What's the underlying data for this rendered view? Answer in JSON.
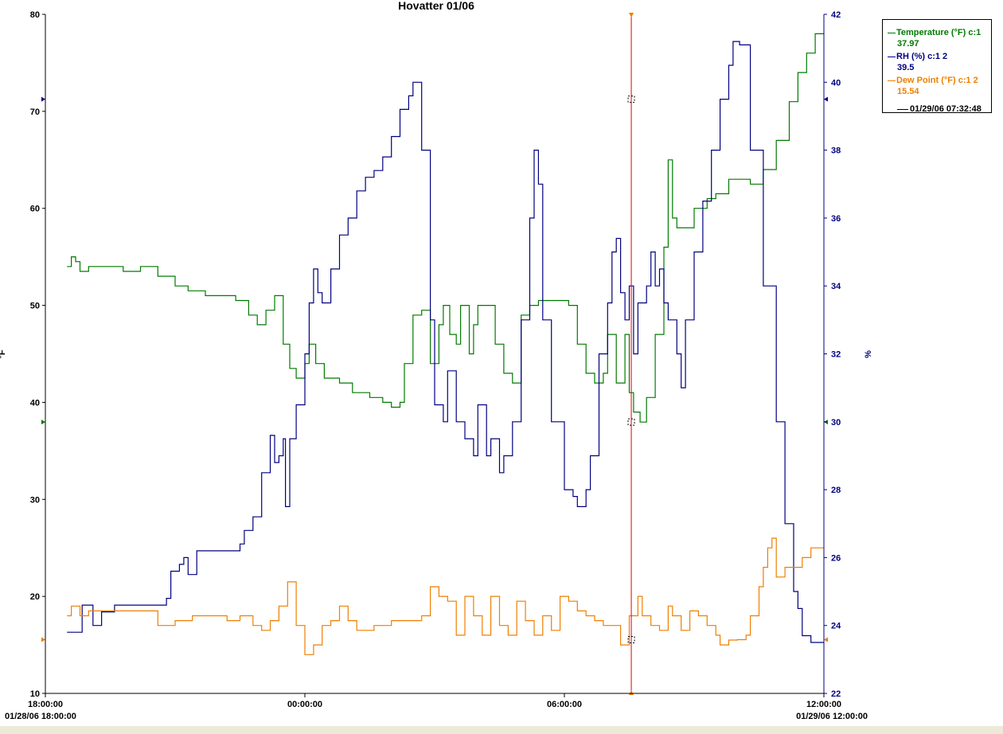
{
  "colors": {
    "temperature": "#007a00",
    "rh": "#000080",
    "dewpoint": "#ee7f00",
    "cursor": "#e00000",
    "axis_left": "#000000",
    "axis_right": "#000080"
  },
  "legend": {
    "temperature": {
      "label": "Temperature (°F) c:1",
      "value": "37.97"
    },
    "rh": {
      "label": "RH (%) c:1 2",
      "value": "39.5"
    },
    "dewpoint": {
      "label": "Dew Point (°F) c:1 2",
      "value": "15.54"
    },
    "cursor_time": "01/29/06 07:32:48"
  },
  "chart_data": {
    "type": "line",
    "title": "Hovatter 01/06",
    "ylabel_left": "°F",
    "ylabel_right": "%",
    "xlim": [
      "01/28/06 18:00:00",
      "01/29/06 12:00:00"
    ],
    "ylim_left": [
      10,
      80
    ],
    "ylim_right": [
      22,
      42
    ],
    "y_ticks_left": [
      "10",
      "20",
      "30",
      "40",
      "50",
      "60",
      "70",
      "80"
    ],
    "y_ticks_right": [
      "22",
      "24",
      "26",
      "28",
      "30",
      "32",
      "34",
      "36",
      "38",
      "40",
      "42"
    ],
    "x_ticks": [
      {
        "hour": 0,
        "label": "18:00:00",
        "sub": "01/28/06 18:00:00"
      },
      {
        "hour": 6,
        "label": "00:00:00",
        "sub": ""
      },
      {
        "hour": 12,
        "label": "06:00:00",
        "sub": ""
      },
      {
        "hour": 18,
        "label": "12:00:00",
        "sub": "01/29/06 12:00:00"
      }
    ],
    "cursor_hour": 13.547,
    "grid": false,
    "legend_position": "top-right",
    "series": [
      {
        "name": "Temperature (°F) c:1",
        "axis": "left",
        "color": "#007a00",
        "points": [
          [
            0.5,
            54
          ],
          [
            0.6,
            55
          ],
          [
            0.7,
            54.5
          ],
          [
            0.8,
            53.5
          ],
          [
            1.0,
            54
          ],
          [
            1.4,
            54
          ],
          [
            1.8,
            53.5
          ],
          [
            2.2,
            54
          ],
          [
            2.6,
            53
          ],
          [
            3.0,
            52
          ],
          [
            3.3,
            51.5
          ],
          [
            3.7,
            51
          ],
          [
            4.1,
            51
          ],
          [
            4.4,
            50.5
          ],
          [
            4.7,
            49
          ],
          [
            4.9,
            48
          ],
          [
            5.1,
            49.5
          ],
          [
            5.3,
            51
          ],
          [
            5.5,
            46
          ],
          [
            5.65,
            43.5
          ],
          [
            5.8,
            42.5
          ],
          [
            6.0,
            44
          ],
          [
            6.1,
            46
          ],
          [
            6.25,
            44
          ],
          [
            6.45,
            42.5
          ],
          [
            6.8,
            42
          ],
          [
            7.1,
            41
          ],
          [
            7.5,
            40.5
          ],
          [
            7.8,
            40
          ],
          [
            8.0,
            39.5
          ],
          [
            8.2,
            40
          ],
          [
            8.3,
            44
          ],
          [
            8.5,
            49
          ],
          [
            8.7,
            49.5
          ],
          [
            8.9,
            44
          ],
          [
            9.0,
            44
          ],
          [
            9.1,
            48
          ],
          [
            9.2,
            50
          ],
          [
            9.35,
            47
          ],
          [
            9.5,
            46
          ],
          [
            9.6,
            50
          ],
          [
            9.7,
            50
          ],
          [
            9.8,
            45
          ],
          [
            9.9,
            48
          ],
          [
            10.0,
            50
          ],
          [
            10.2,
            50
          ],
          [
            10.4,
            46
          ],
          [
            10.6,
            43
          ],
          [
            10.8,
            42
          ],
          [
            11.0,
            49
          ],
          [
            11.2,
            50
          ],
          [
            11.4,
            50.5
          ],
          [
            11.9,
            50.5
          ],
          [
            12.1,
            50
          ],
          [
            12.3,
            46
          ],
          [
            12.5,
            43
          ],
          [
            12.7,
            42
          ],
          [
            12.9,
            43
          ],
          [
            13.0,
            47
          ],
          [
            13.2,
            42
          ],
          [
            13.4,
            47
          ],
          [
            13.5,
            41
          ],
          [
            13.6,
            39
          ],
          [
            13.75,
            37.97
          ],
          [
            13.9,
            40.5
          ],
          [
            14.1,
            47
          ],
          [
            14.3,
            56
          ],
          [
            14.4,
            65
          ],
          [
            14.5,
            59
          ],
          [
            14.6,
            58
          ],
          [
            14.8,
            58
          ],
          [
            15.0,
            60
          ],
          [
            15.3,
            61
          ],
          [
            15.5,
            61.5
          ],
          [
            15.8,
            63
          ],
          [
            16.1,
            63
          ],
          [
            16.3,
            62.5
          ],
          [
            16.6,
            64
          ],
          [
            16.9,
            67
          ],
          [
            17.2,
            71
          ],
          [
            17.4,
            74
          ],
          [
            17.6,
            76
          ],
          [
            17.8,
            78
          ],
          [
            18.0,
            78
          ]
        ]
      },
      {
        "name": "RH (%) c:1 2",
        "axis": "right",
        "color": "#000080",
        "points": [
          [
            0.5,
            23.8
          ],
          [
            0.8,
            23.8
          ],
          [
            0.85,
            24.6
          ],
          [
            1.0,
            24.6
          ],
          [
            1.1,
            24.0
          ],
          [
            1.2,
            24.0
          ],
          [
            1.3,
            24.4
          ],
          [
            1.6,
            24.6
          ],
          [
            2.0,
            24.6
          ],
          [
            2.5,
            24.6
          ],
          [
            2.8,
            24.8
          ],
          [
            2.9,
            25.6
          ],
          [
            3.1,
            25.8
          ],
          [
            3.2,
            26.0
          ],
          [
            3.3,
            25.5
          ],
          [
            3.5,
            26.2
          ],
          [
            3.9,
            26.2
          ],
          [
            4.2,
            26.2
          ],
          [
            4.5,
            26.4
          ],
          [
            4.6,
            26.8
          ],
          [
            4.8,
            27.2
          ],
          [
            5.0,
            28.5
          ],
          [
            5.2,
            29.6
          ],
          [
            5.3,
            28.8
          ],
          [
            5.4,
            29.0
          ],
          [
            5.5,
            29.5
          ],
          [
            5.55,
            27.5
          ],
          [
            5.65,
            29.5
          ],
          [
            5.8,
            30.5
          ],
          [
            6.0,
            32
          ],
          [
            6.1,
            33.5
          ],
          [
            6.2,
            34.5
          ],
          [
            6.3,
            33.8
          ],
          [
            6.4,
            33.5
          ],
          [
            6.6,
            34.5
          ],
          [
            6.8,
            35.5
          ],
          [
            7.0,
            36
          ],
          [
            7.2,
            36.8
          ],
          [
            7.4,
            37.2
          ],
          [
            7.6,
            37.4
          ],
          [
            7.8,
            37.8
          ],
          [
            8.0,
            38.4
          ],
          [
            8.2,
            39.2
          ],
          [
            8.4,
            39.6
          ],
          [
            8.5,
            40.0
          ],
          [
            8.7,
            38
          ],
          [
            8.9,
            33
          ],
          [
            9.0,
            30.5
          ],
          [
            9.2,
            30
          ],
          [
            9.3,
            31.5
          ],
          [
            9.5,
            30
          ],
          [
            9.7,
            29.5
          ],
          [
            9.9,
            29
          ],
          [
            10.0,
            30.5
          ],
          [
            10.2,
            29.0
          ],
          [
            10.3,
            29.5
          ],
          [
            10.5,
            28.5
          ],
          [
            10.6,
            29.0
          ],
          [
            10.8,
            30
          ],
          [
            11.0,
            33
          ],
          [
            11.2,
            36
          ],
          [
            11.3,
            38
          ],
          [
            11.4,
            37
          ],
          [
            11.5,
            33
          ],
          [
            11.7,
            30
          ],
          [
            12.0,
            28
          ],
          [
            12.2,
            27.8
          ],
          [
            12.3,
            27.5
          ],
          [
            12.5,
            28.0
          ],
          [
            12.6,
            29
          ],
          [
            12.8,
            32
          ],
          [
            13.0,
            33.5
          ],
          [
            13.1,
            35
          ],
          [
            13.2,
            35.4
          ],
          [
            13.3,
            33.8
          ],
          [
            13.4,
            33
          ],
          [
            13.5,
            34
          ],
          [
            13.6,
            32
          ],
          [
            13.7,
            33.5
          ],
          [
            13.9,
            34
          ],
          [
            14.0,
            35
          ],
          [
            14.1,
            34
          ],
          [
            14.2,
            34.5
          ],
          [
            14.3,
            33.5
          ],
          [
            14.4,
            33
          ],
          [
            14.6,
            32
          ],
          [
            14.7,
            31
          ],
          [
            14.8,
            33
          ],
          [
            15.0,
            35
          ],
          [
            15.2,
            36.5
          ],
          [
            15.4,
            38
          ],
          [
            15.6,
            39.5
          ],
          [
            15.8,
            40.5
          ],
          [
            15.9,
            41.2
          ],
          [
            16.05,
            41.1
          ],
          [
            16.3,
            38
          ],
          [
            16.6,
            34
          ],
          [
            16.9,
            30
          ],
          [
            17.1,
            27
          ],
          [
            17.3,
            25
          ],
          [
            17.4,
            24.5
          ],
          [
            17.5,
            23.7
          ],
          [
            17.7,
            23.5
          ],
          [
            17.8,
            23.5
          ],
          [
            18.0,
            23.5
          ]
        ]
      },
      {
        "name": "Dew Point (°F) c:1 2",
        "axis": "left",
        "color": "#ee7f00",
        "points": [
          [
            0.5,
            18
          ],
          [
            0.6,
            19
          ],
          [
            0.8,
            18
          ],
          [
            1.0,
            18.5
          ],
          [
            1.4,
            18.5
          ],
          [
            1.8,
            18.5
          ],
          [
            2.2,
            18.5
          ],
          [
            2.6,
            17
          ],
          [
            3.0,
            17.5
          ],
          [
            3.4,
            18
          ],
          [
            3.8,
            18
          ],
          [
            4.2,
            17.5
          ],
          [
            4.5,
            18
          ],
          [
            4.8,
            17
          ],
          [
            5.0,
            16.5
          ],
          [
            5.2,
            17.5
          ],
          [
            5.4,
            19
          ],
          [
            5.6,
            21.5
          ],
          [
            5.8,
            17
          ],
          [
            6.0,
            14
          ],
          [
            6.2,
            15
          ],
          [
            6.4,
            17
          ],
          [
            6.6,
            17.5
          ],
          [
            6.8,
            19
          ],
          [
            7.0,
            17.5
          ],
          [
            7.2,
            16.5
          ],
          [
            7.6,
            17
          ],
          [
            8.0,
            17.5
          ],
          [
            8.4,
            17.5
          ],
          [
            8.7,
            18
          ],
          [
            8.9,
            21
          ],
          [
            9.1,
            20
          ],
          [
            9.3,
            19.5
          ],
          [
            9.5,
            16
          ],
          [
            9.7,
            20
          ],
          [
            9.9,
            18
          ],
          [
            10.1,
            16
          ],
          [
            10.3,
            20
          ],
          [
            10.5,
            17
          ],
          [
            10.7,
            16
          ],
          [
            10.9,
            19.5
          ],
          [
            11.1,
            17.5
          ],
          [
            11.3,
            16
          ],
          [
            11.5,
            18
          ],
          [
            11.7,
            16.5
          ],
          [
            11.9,
            20
          ],
          [
            12.1,
            19.5
          ],
          [
            12.3,
            18.5
          ],
          [
            12.5,
            18
          ],
          [
            12.7,
            17.5
          ],
          [
            12.9,
            17
          ],
          [
            13.1,
            17
          ],
          [
            13.3,
            15
          ],
          [
            13.5,
            18
          ],
          [
            13.7,
            20
          ],
          [
            13.8,
            18
          ],
          [
            14.0,
            17
          ],
          [
            14.2,
            16.5
          ],
          [
            14.4,
            19
          ],
          [
            14.5,
            18
          ],
          [
            14.7,
            16.5
          ],
          [
            14.9,
            18.5
          ],
          [
            15.1,
            18
          ],
          [
            15.3,
            17
          ],
          [
            15.5,
            16
          ],
          [
            15.6,
            15
          ],
          [
            15.8,
            15.5
          ],
          [
            16.0,
            15.54
          ],
          [
            16.2,
            16
          ],
          [
            16.3,
            18
          ],
          [
            16.5,
            21
          ],
          [
            16.6,
            23
          ],
          [
            16.7,
            25
          ],
          [
            16.8,
            26
          ],
          [
            16.9,
            22
          ],
          [
            17.1,
            23
          ],
          [
            17.3,
            23
          ],
          [
            17.5,
            24
          ],
          [
            17.7,
            25
          ],
          [
            18.0,
            25
          ]
        ]
      }
    ]
  }
}
